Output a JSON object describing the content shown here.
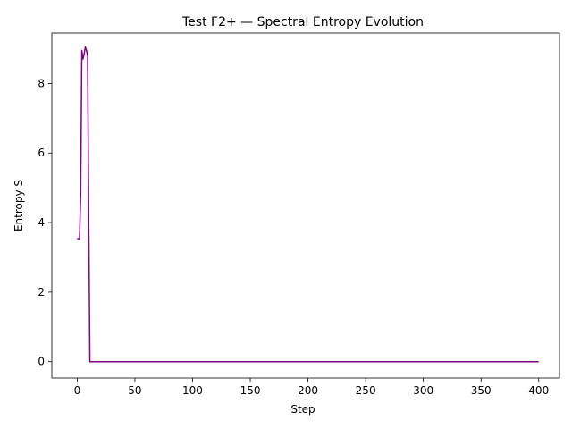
{
  "chart_data": {
    "type": "line",
    "title": "Test F2+ — Spectral Entropy Evolution",
    "xlabel": "Step",
    "ylabel": "Entropy S",
    "xlim": [
      -22,
      418
    ],
    "ylim": [
      -0.47,
      9.45
    ],
    "x_ticks": [
      0,
      50,
      100,
      150,
      200,
      250,
      300,
      350,
      400
    ],
    "y_ticks": [
      0,
      2,
      4,
      6,
      8
    ],
    "grid": false,
    "legend": "none",
    "series": [
      {
        "color": "#800080",
        "x": [
          0,
          1,
          2,
          3,
          4,
          5,
          6,
          7,
          8,
          9,
          10,
          11,
          400
        ],
        "y": [
          3.55,
          3.53,
          3.52,
          4.8,
          8.95,
          8.7,
          8.85,
          9.05,
          8.95,
          8.8,
          4.0,
          0.0,
          0.0
        ]
      }
    ]
  }
}
